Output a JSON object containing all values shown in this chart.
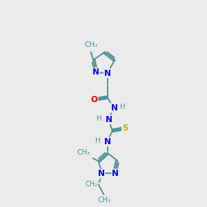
{
  "background_color": "#ebebeb",
  "bond_color": "#4a9090",
  "nitrogen_color": "#0000ee",
  "oxygen_color": "#ee0000",
  "sulfur_color": "#ccaa00",
  "text_color": "#4a9090",
  "figsize": [
    3.0,
    3.0
  ],
  "dpi": 100,
  "xlim": [
    0,
    10
  ],
  "ylim": [
    0,
    16
  ]
}
